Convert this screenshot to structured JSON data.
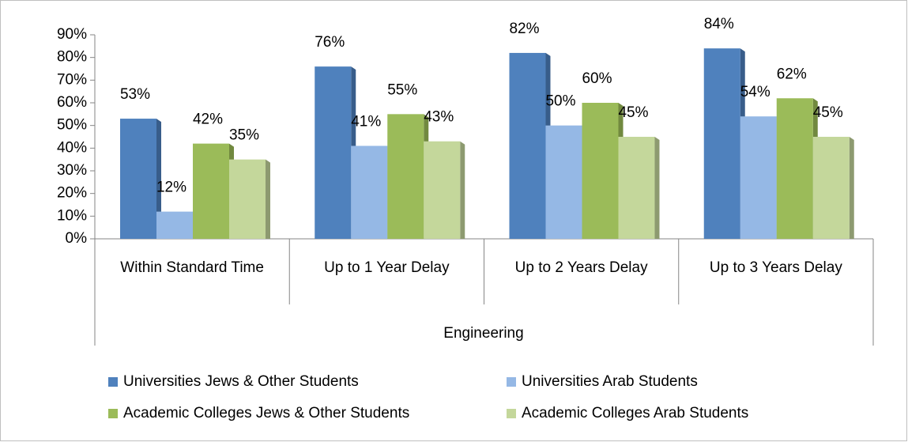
{
  "chart_data": {
    "type": "bar",
    "categories": [
      "Within Standard Time",
      "Up to 1 Year Delay",
      "Up to 2 Years Delay",
      "Up to 3 Years Delay"
    ],
    "category_group": "Engineering",
    "series": [
      {
        "name": "Universities Jews & Other Students",
        "color": "#4f81bd",
        "side_color": "#385d8a",
        "values": [
          53,
          76,
          82,
          84
        ],
        "value_labels": [
          "53%",
          "76%",
          "82%",
          "84%"
        ]
      },
      {
        "name": "Universities Arab Students",
        "color": "#95b8e5",
        "side_color": "#6d93c4",
        "values": [
          12,
          41,
          50,
          54
        ],
        "value_labels": [
          "12%",
          "41%",
          "50%",
          "54%"
        ]
      },
      {
        "name": "Academic Colleges Jews & Other Students",
        "color": "#9bbb59",
        "side_color": "#71893f",
        "values": [
          42,
          55,
          60,
          62
        ],
        "value_labels": [
          "42%",
          "55%",
          "60%",
          "62%"
        ]
      },
      {
        "name": "Academic Colleges Arab Students",
        "color": "#c4d79b",
        "side_color": "#8d9a70",
        "values": [
          35,
          43,
          45,
          45
        ],
        "value_labels": [
          "35%",
          "43%",
          "45%",
          "45%"
        ]
      }
    ],
    "ylim": [
      0,
      90
    ],
    "yticks": [
      {
        "value": 0,
        "label": "0%"
      },
      {
        "value": 10,
        "label": "10%"
      },
      {
        "value": 20,
        "label": "20%"
      },
      {
        "value": 30,
        "label": "30%"
      },
      {
        "value": 40,
        "label": "40%"
      },
      {
        "value": 50,
        "label": "50%"
      },
      {
        "value": 60,
        "label": "60%"
      },
      {
        "value": 70,
        "label": "70%"
      },
      {
        "value": 80,
        "label": "80%"
      },
      {
        "value": 90,
        "label": "90%"
      }
    ],
    "legend": "bottom"
  }
}
